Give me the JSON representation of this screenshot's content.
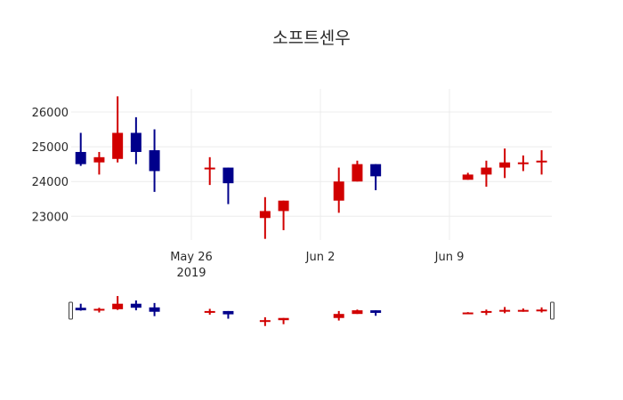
{
  "title": "소프트센우",
  "colors": {
    "increasing": "#d10000",
    "decreasing": "#00008b",
    "grid": "#ececec",
    "handle_border": "#444444"
  },
  "chart_data": {
    "type": "candlestick",
    "title": "소프트센우",
    "xlabel": "",
    "ylabel": "",
    "ylim": [
      22200,
      26700
    ],
    "xlim": [
      "2019-05-19",
      "2019-06-14"
    ],
    "grid": true,
    "y_ticks": [
      23000,
      24000,
      25000,
      26000
    ],
    "x_ticks": [
      {
        "date": "2019-05-26",
        "label": "May 26",
        "sublabel": "2019"
      },
      {
        "date": "2019-06-02",
        "label": "Jun 2",
        "sublabel": ""
      },
      {
        "date": "2019-06-09",
        "label": "Jun 9",
        "sublabel": ""
      }
    ],
    "rangeslider": true,
    "series": [
      {
        "date": "2019-05-20",
        "open": 24850,
        "high": 25400,
        "low": 24450,
        "close": 24500
      },
      {
        "date": "2019-05-21",
        "open": 24550,
        "high": 24850,
        "low": 24200,
        "close": 24700
      },
      {
        "date": "2019-05-22",
        "open": 24650,
        "high": 26450,
        "low": 24550,
        "close": 25400
      },
      {
        "date": "2019-05-23",
        "open": 25400,
        "high": 25850,
        "low": 24500,
        "close": 24850
      },
      {
        "date": "2019-05-24",
        "open": 24900,
        "high": 25500,
        "low": 23700,
        "close": 24300
      },
      {
        "date": "2019-05-27",
        "open": 24350,
        "high": 24700,
        "low": 23900,
        "close": 24400
      },
      {
        "date": "2019-05-28",
        "open": 24400,
        "high": 24400,
        "low": 23350,
        "close": 23950
      },
      {
        "date": "2019-05-30",
        "open": 22950,
        "high": 23550,
        "low": 22350,
        "close": 23150
      },
      {
        "date": "2019-05-31",
        "open": 23150,
        "high": 23450,
        "low": 22600,
        "close": 23450
      },
      {
        "date": "2019-06-03",
        "open": 23450,
        "high": 24400,
        "low": 23100,
        "close": 24000
      },
      {
        "date": "2019-06-04",
        "open": 24000,
        "high": 24600,
        "low": 24000,
        "close": 24500
      },
      {
        "date": "2019-06-05",
        "open": 24500,
        "high": 24500,
        "low": 23750,
        "close": 24150
      },
      {
        "date": "2019-06-10",
        "open": 24050,
        "high": 24250,
        "low": 24050,
        "close": 24200
      },
      {
        "date": "2019-06-11",
        "open": 24200,
        "high": 24600,
        "low": 23850,
        "close": 24400
      },
      {
        "date": "2019-06-12",
        "open": 24400,
        "high": 24950,
        "low": 24100,
        "close": 24550
      },
      {
        "date": "2019-06-13",
        "open": 24500,
        "high": 24750,
        "low": 24300,
        "close": 24550
      },
      {
        "date": "2019-06-14",
        "open": 24550,
        "high": 24900,
        "low": 24200,
        "close": 24600
      }
    ]
  }
}
